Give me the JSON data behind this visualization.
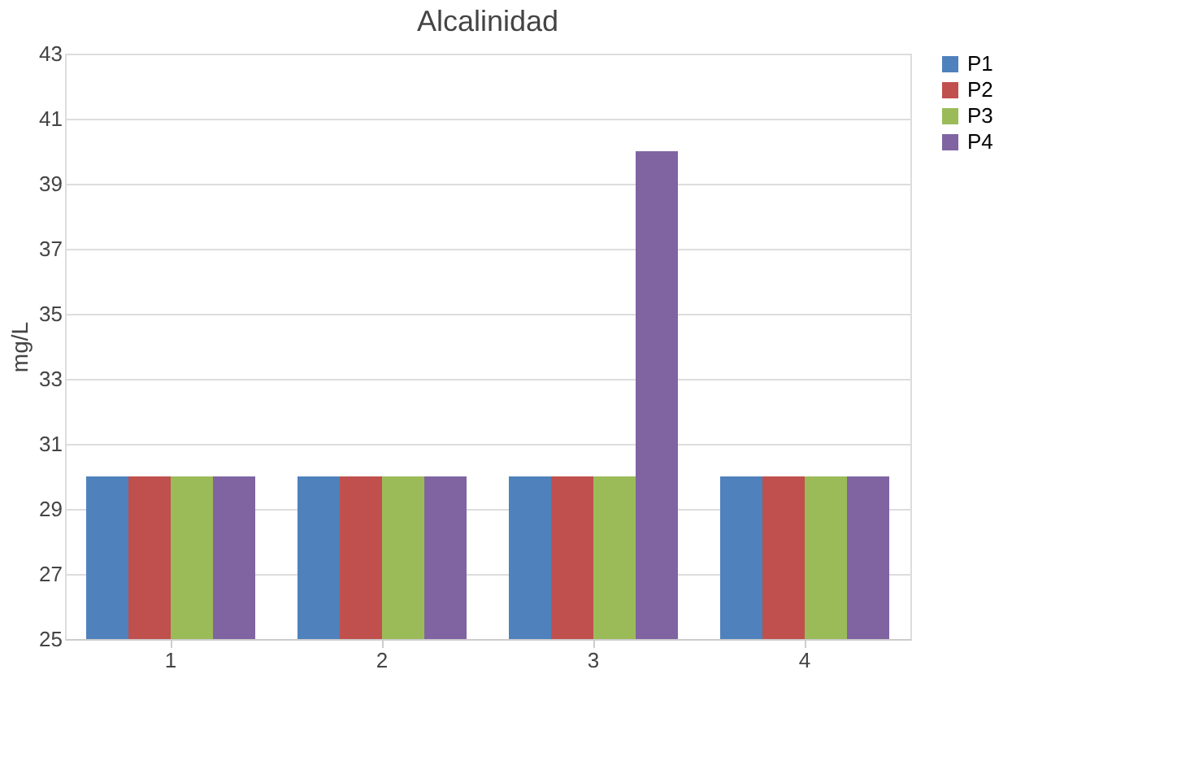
{
  "chart_data": {
    "type": "bar",
    "title": "Alcalinidad",
    "ylabel": "mg/L",
    "categories": [
      "1",
      "2",
      "3",
      "4"
    ],
    "series": [
      {
        "name": "P1",
        "color": "#4f81bd",
        "values": [
          30,
          30,
          30,
          30
        ]
      },
      {
        "name": "P2",
        "color": "#c0504d",
        "values": [
          30,
          30,
          30,
          30
        ]
      },
      {
        "name": "P3",
        "color": "#9bbb59",
        "values": [
          30,
          30,
          30,
          30
        ]
      },
      {
        "name": "P4",
        "color": "#8064a2",
        "values": [
          30,
          30,
          40,
          30
        ]
      }
    ],
    "ylim": [
      25,
      43
    ],
    "yticks": [
      25,
      27,
      29,
      31,
      33,
      35,
      37,
      39,
      41,
      43
    ],
    "grid": "y",
    "legend": "right"
  }
}
